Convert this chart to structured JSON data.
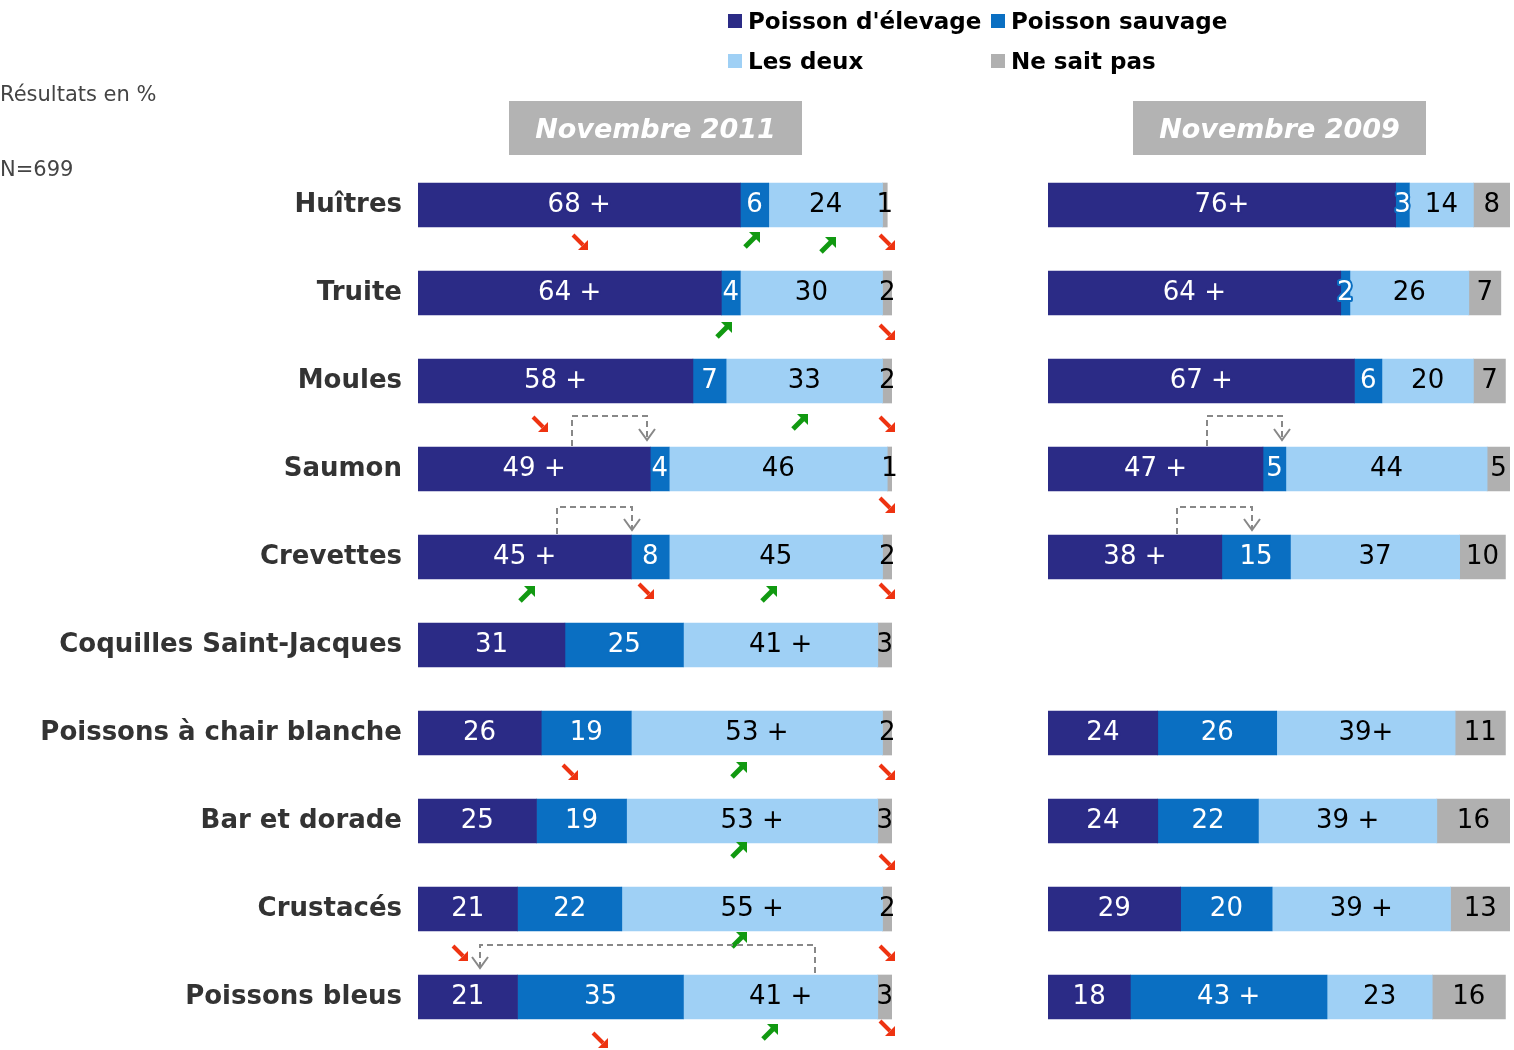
{
  "chart_data": [
    {
      "type": "bar",
      "orientation": "horizontal",
      "stacked": true,
      "title": "Novembre 2011",
      "legend": "top",
      "annotations": [
        "Résultats en %",
        "N=699"
      ],
      "categories": [
        "Huîtres",
        "Truite",
        "Moules",
        "Saumon",
        "Crevettes",
        "Coquilles Saint-Jacques",
        "Poissons à chair blanche",
        "Bar et dorade",
        "Crustacés",
        "Poissons bleus"
      ],
      "series": [
        {
          "name": "Poisson d'élevage",
          "color": "#2b2b86",
          "values": [
            68,
            64,
            58,
            49,
            45,
            31,
            26,
            25,
            21,
            21
          ],
          "value_labels": [
            "68 +",
            "64 +",
            "58 +",
            "49 +",
            "45 +",
            "31",
            "26",
            "25",
            "21",
            "21"
          ]
        },
        {
          "name": "Poisson sauvage",
          "color": "#0a6fc2",
          "values": [
            6,
            4,
            7,
            4,
            8,
            25,
            19,
            19,
            22,
            35
          ],
          "value_labels": [
            "6",
            "4",
            "7",
            "4",
            "8",
            "25",
            "19",
            "19",
            "22",
            "35"
          ]
        },
        {
          "name": "Les deux",
          "color": "#9fd0f5",
          "values": [
            24,
            30,
            33,
            46,
            45,
            41,
            53,
            53,
            55,
            41
          ],
          "value_labels": [
            "24",
            "30",
            "33",
            "46",
            "45",
            "41 +",
            "53 +",
            "53 +",
            "55 +",
            "41 +"
          ]
        },
        {
          "name": "Ne sait pas",
          "color": "#b0b0b0",
          "values": [
            1,
            2,
            2,
            1,
            2,
            3,
            2,
            3,
            2,
            3
          ],
          "value_labels": [
            "1",
            "2",
            "2",
            "1",
            "2",
            "3",
            "2",
            "3",
            "2",
            "3"
          ]
        }
      ]
    },
    {
      "type": "bar",
      "orientation": "horizontal",
      "stacked": true,
      "title": "Novembre 2009",
      "categories": [
        null,
        null,
        null,
        null,
        null,
        null,
        null,
        null,
        null,
        null
      ],
      "series": [
        {
          "color": "#2b2b86",
          "values": [
            76,
            64,
            67,
            47,
            38,
            null,
            24,
            24,
            29,
            18
          ],
          "value_labels": [
            "76+",
            "64 +",
            "67 +",
            "47 +",
            "38 +",
            null,
            "24",
            "24",
            "29",
            "18"
          ]
        },
        {
          "color": "#0a6fc2",
          "values": [
            3,
            2,
            6,
            5,
            15,
            null,
            26,
            22,
            20,
            43
          ],
          "value_labels": [
            "3",
            "2",
            "6",
            "5",
            "15",
            null,
            "26",
            "22",
            "20",
            "43 +"
          ]
        },
        {
          "color": "#9fd0f5",
          "values": [
            14,
            26,
            20,
            44,
            37,
            null,
            39,
            39,
            39,
            23
          ],
          "value_labels": [
            "14",
            "26",
            "20",
            "44",
            "37",
            null,
            "39+",
            "39 +",
            "39 +",
            "23"
          ]
        },
        {
          "color": "#b0b0b0",
          "values": [
            8,
            7,
            7,
            5,
            10,
            null,
            11,
            16,
            13,
            16
          ],
          "value_labels": [
            "8",
            "7",
            "7",
            "5",
            "10",
            null,
            "11",
            "16",
            "13",
            "16"
          ]
        }
      ]
    }
  ]
}
